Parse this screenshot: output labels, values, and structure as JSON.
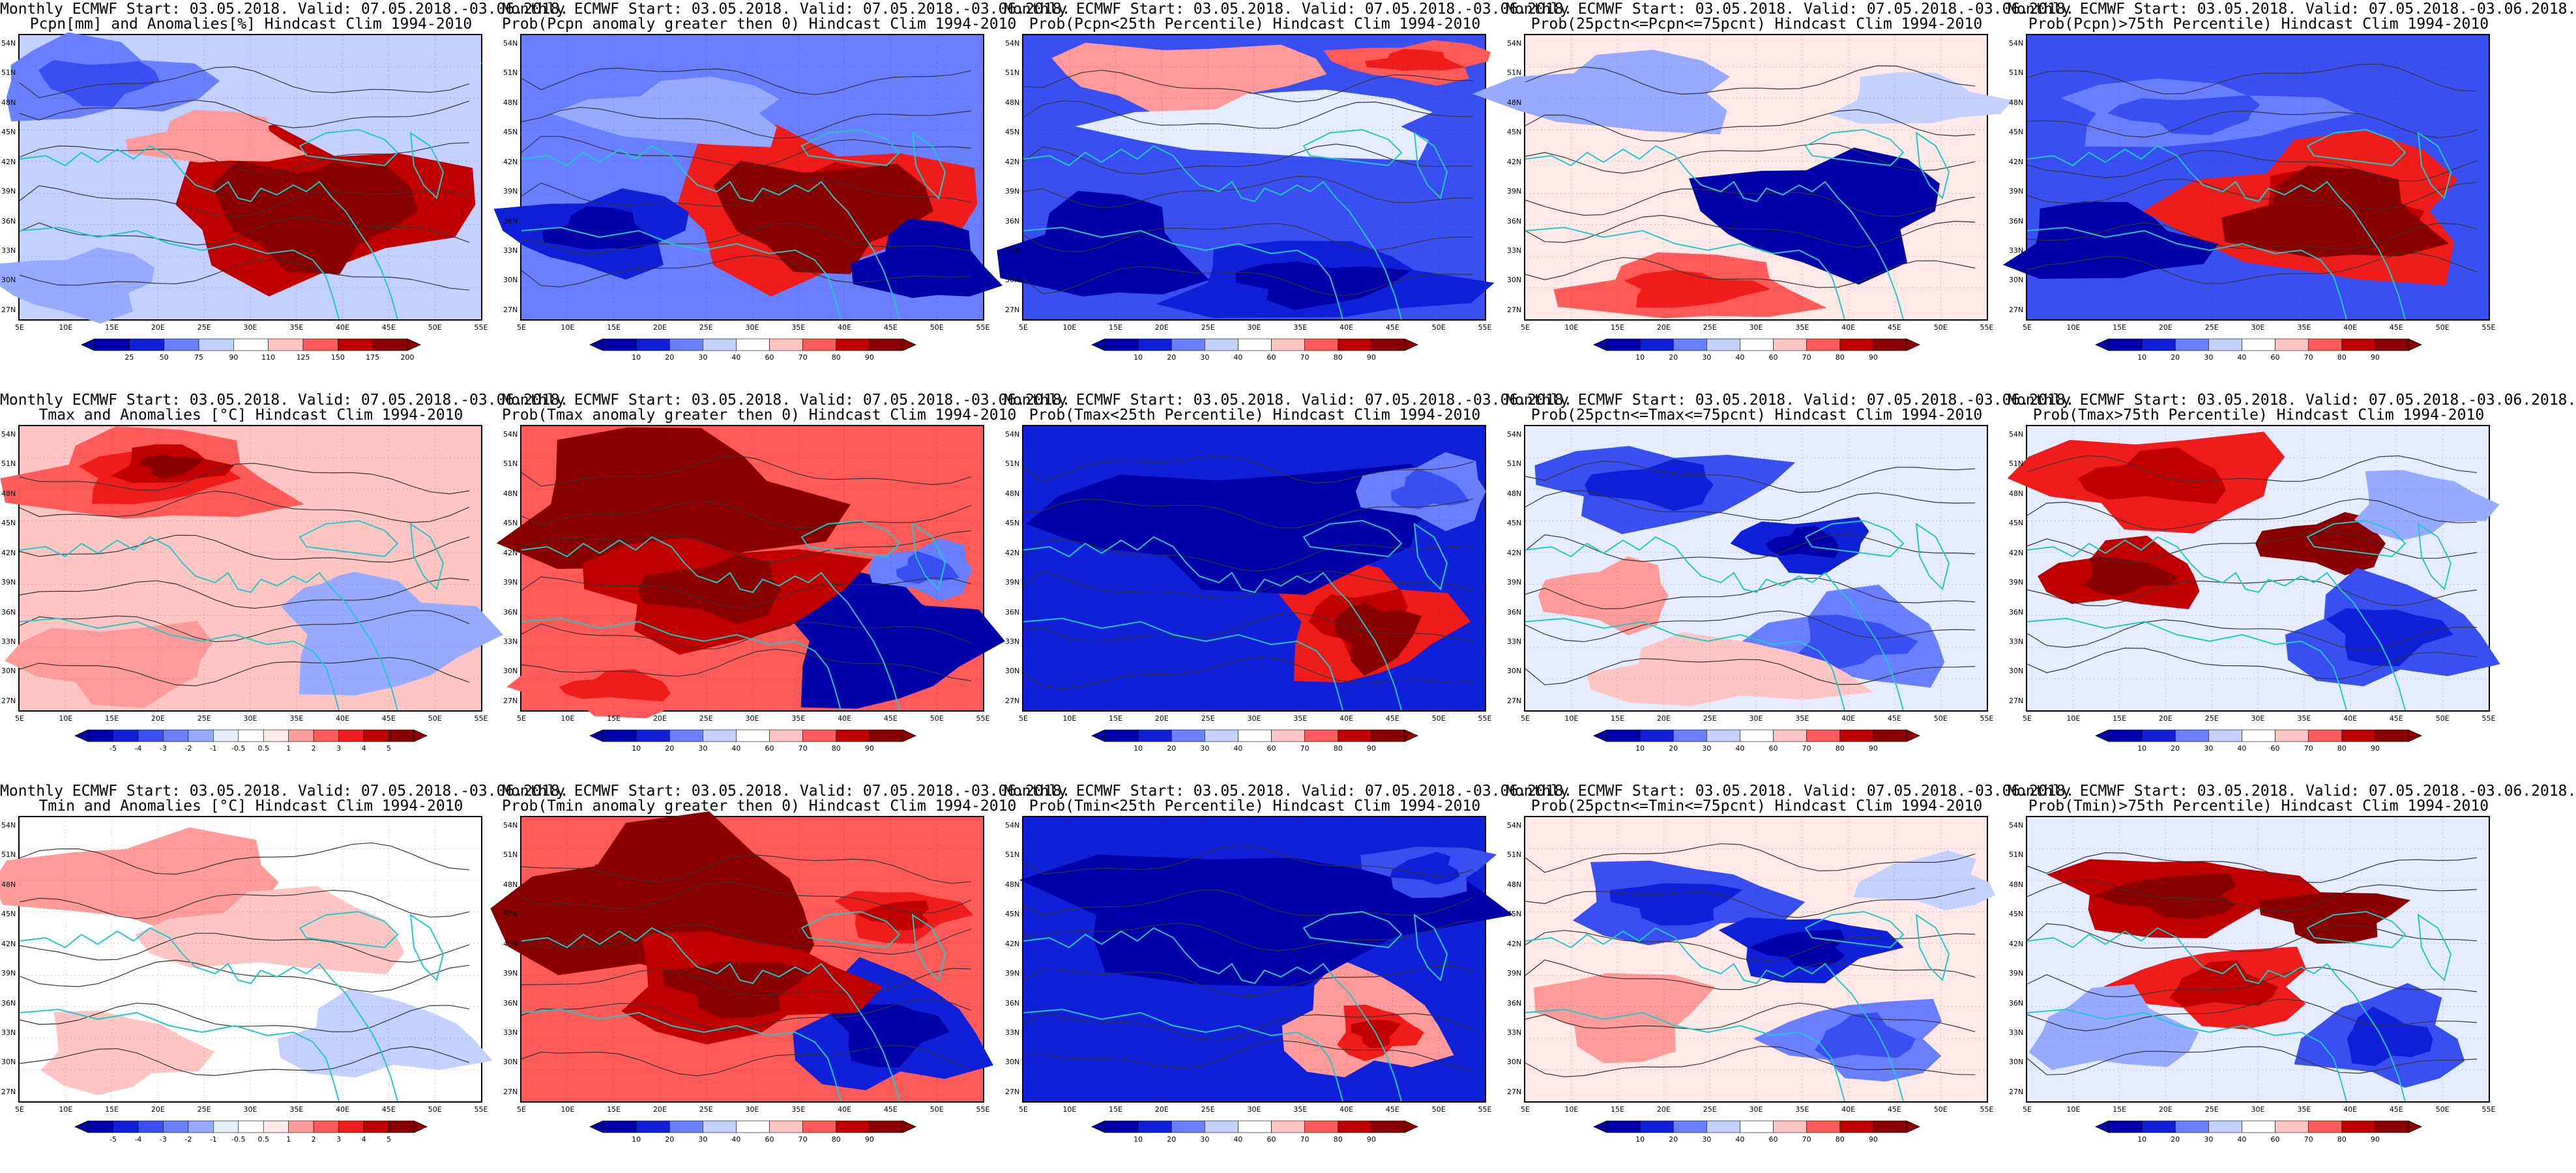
{
  "title_line1": "Monthly ECMWF Start: 03.05.2018. Valid: 07.05.2018.-03.06.2018.",
  "hindcast": "Hindcast Clim 1994-2010",
  "lat_labels": [
    "54N",
    "51N",
    "48N",
    "45N",
    "42N",
    "39N",
    "36N",
    "33N",
    "30N",
    "27N"
  ],
  "lon_labels": [
    "5E",
    "10E",
    "15E",
    "20E",
    "25E",
    "30E",
    "35E",
    "40E",
    "45E",
    "50E",
    "55E"
  ],
  "colors": {
    "red": [
      "#ffe8e8",
      "#ffc4c4",
      "#ff9a9a",
      "#ff5a5a",
      "#f01c1c",
      "#c00000",
      "#8a0000"
    ],
    "blue": [
      "#e6ecff",
      "#c4d0ff",
      "#98aaff",
      "#6a7fff",
      "#3a4ff2",
      "#1020d8",
      "#0000a8"
    ],
    "coast": "#20c8c8"
  },
  "rows": [
    {
      "variable": "Pcpn",
      "panels": [
        {
          "subtitle": "Pcpn[mm] and Anomalies[%] Hindcast Clim 1994-2010",
          "scale": "anom_pcpn",
          "theme": "pcpn_anom"
        },
        {
          "subtitle": "Prob(Pcpn anomaly greater then 0) Hindcast Clim 1994-2010",
          "scale": "prob",
          "theme": "pcpn_prob"
        },
        {
          "subtitle": "Prob(Pcpn<25th Percentile) Hindcast Clim 1994-2010",
          "scale": "prob",
          "theme": "pcpn_low"
        },
        {
          "subtitle": "Prob(25pctn<=Pcpn<=75pcnt) Hindcast Clim 1994-2010",
          "scale": "prob",
          "theme": "pcpn_mid"
        },
        {
          "subtitle": "Prob(Pcpn)>75th Percentile) Hindcast Clim 1994-2010",
          "scale": "prob",
          "theme": "pcpn_high"
        }
      ]
    },
    {
      "variable": "Tmax",
      "panels": [
        {
          "subtitle": "Tmax and Anomalies [°C] Hindcast Clim 1994-2010",
          "scale": "anom_temp",
          "theme": "tmax_anom"
        },
        {
          "subtitle": "Prob(Tmax anomaly greater then 0) Hindcast Clim 1994-2010",
          "scale": "prob",
          "theme": "tmax_prob"
        },
        {
          "subtitle": "Prob(Tmax<25th Percentile) Hindcast Clim 1994-2010",
          "scale": "prob",
          "theme": "tmax_low"
        },
        {
          "subtitle": "Prob(25pctn<=Tmax<=75pcnt) Hindcast Clim 1994-2010",
          "scale": "prob",
          "theme": "tmax_mid"
        },
        {
          "subtitle": "Prob(Tmax>75th Percentile) Hindcast Clim 1994-2010",
          "scale": "prob",
          "theme": "tmax_high"
        }
      ]
    },
    {
      "variable": "Tmin",
      "panels": [
        {
          "subtitle": "Tmin and Anomalies [°C] Hindcast Clim 1994-2010",
          "scale": "anom_temp",
          "theme": "tmin_anom"
        },
        {
          "subtitle": "Prob(Tmin anomaly greater then 0) Hindcast Clim 1994-2010",
          "scale": "prob",
          "theme": "tmin_prob"
        },
        {
          "subtitle": "Prob(Tmin<25th Percentile) Hindcast Clim 1994-2010",
          "scale": "prob",
          "theme": "tmin_low"
        },
        {
          "subtitle": "Prob(25pctn<=Tmin<=75pcnt) Hindcast Clim 1994-2010",
          "scale": "prob",
          "theme": "tmin_mid"
        },
        {
          "subtitle": "Prob(Tmin)>75th Percentile) Hindcast Clim 1994-2010",
          "scale": "prob",
          "theme": "tmin_high"
        }
      ]
    }
  ],
  "colorbars": {
    "prob": [
      "10",
      "20",
      "30",
      "40",
      "60",
      "70",
      "80",
      "90"
    ],
    "anom_pcpn": [
      "25",
      "50",
      "75",
      "90",
      "110",
      "125",
      "150",
      "175",
      "200"
    ],
    "anom_temp": [
      "-5",
      "-4",
      "-3",
      "-2",
      "-1",
      "-0.5",
      "0.5",
      "1",
      "2",
      "3",
      "4",
      "5"
    ]
  }
}
